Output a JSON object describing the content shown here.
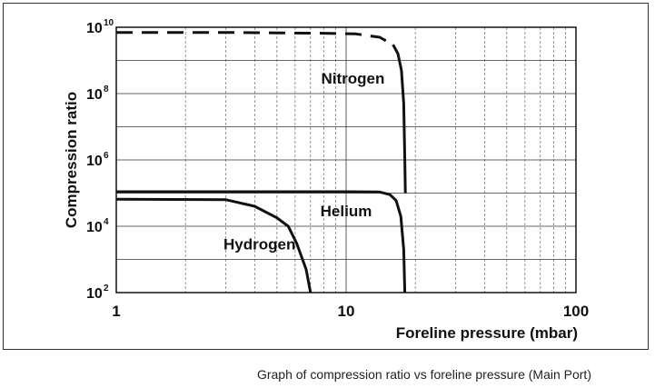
{
  "chart_data": {
    "type": "line",
    "xscale": "log",
    "yscale": "log",
    "xlim": [
      1,
      100
    ],
    "ylim": [
      100,
      10000000000
    ],
    "xlabel": "Foreline pressure (mbar)",
    "ylabel": "Compression ratio",
    "x_ticks": [
      {
        "value": 1,
        "label": "1"
      },
      {
        "value": 10,
        "label": "10"
      },
      {
        "value": 100,
        "label": "100"
      }
    ],
    "y_ticks": [
      {
        "value": 100,
        "base": "10",
        "exp": "2"
      },
      {
        "value": 10000,
        "base": "10",
        "exp": "4"
      },
      {
        "value": 1000000,
        "base": "10",
        "exp": "6"
      },
      {
        "value": 100000000,
        "base": "10",
        "exp": "8"
      },
      {
        "value": 10000000000,
        "base": "10",
        "exp": "10"
      }
    ],
    "grid": true,
    "series": [
      {
        "name": "Nitrogen",
        "segments": [
          {
            "style": "dashed",
            "points": [
              [
                1,
                7000000000
              ],
              [
                3,
                7000000000
              ],
              [
                8,
                6600000000
              ],
              [
                11,
                6300000000
              ],
              [
                14,
                5000000000
              ],
              [
                16,
                3000000000
              ]
            ]
          },
          {
            "style": "solid",
            "points": [
              [
                16,
                3000000000
              ],
              [
                16.8,
                1600000000
              ],
              [
                17.4,
                500000000
              ],
              [
                17.8,
                50000000
              ],
              [
                18,
                1000000
              ],
              [
                18.1,
                100000
              ]
            ]
          }
        ]
      },
      {
        "name": "Helium",
        "segments": [
          {
            "style": "solid",
            "points": [
              [
                1,
                110000
              ],
              [
                10,
                110000
              ],
              [
                14,
                108000
              ],
              [
                15.5,
                90000
              ],
              [
                16.5,
                60000
              ],
              [
                17.3,
                20000
              ],
              [
                17.8,
                2000
              ],
              [
                18,
                100
              ]
            ]
          }
        ]
      },
      {
        "name": "Hydrogen",
        "segments": [
          {
            "style": "solid",
            "points": [
              [
                1,
                65000
              ],
              [
                3,
                63000
              ],
              [
                4,
                40000
              ],
              [
                5,
                18000
              ],
              [
                5.6,
                10000
              ],
              [
                6.1,
                3000
              ],
              [
                6.7,
                500
              ],
              [
                7,
                100
              ]
            ]
          }
        ]
      }
    ],
    "annotations": [
      {
        "text": "Nitrogen",
        "x": 10.7,
        "y": 200000000
      },
      {
        "text": "Helium",
        "x": 10,
        "y": 20000
      },
      {
        "text": "Hydrogen",
        "x": 4.2,
        "y": 2000
      }
    ]
  },
  "caption": "Graph of compression ratio vs foreline pressure (Main Port)"
}
